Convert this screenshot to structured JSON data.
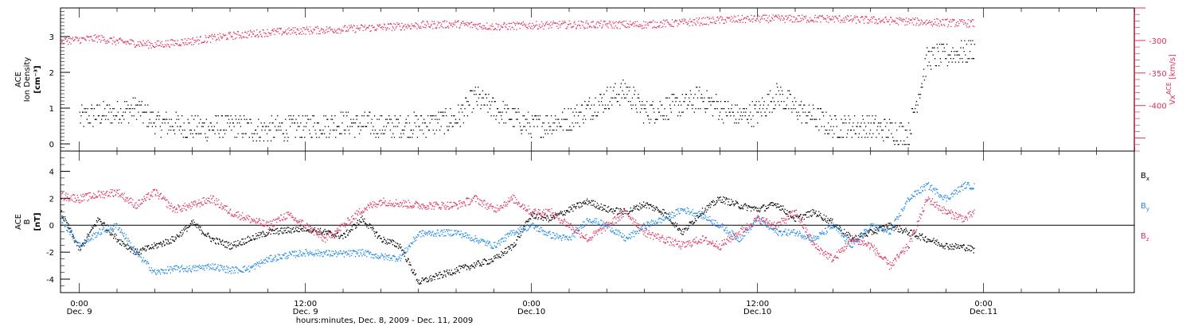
{
  "colors": {
    "black": "#000000",
    "red": "#e0305c",
    "blue": "#1e88e5"
  },
  "chart_data": [
    {
      "type": "scatter",
      "panel": "top",
      "ylabel_lines": [
        "ACE",
        "Ion Density"
      ],
      "yunit": "[cm⁻³]",
      "ylim": [
        -0.2,
        3.8
      ],
      "yticks": [
        "0",
        "1",
        "2",
        "3"
      ],
      "y2label": "Vₓᴬᶜᴱ [km/s]",
      "y2label_text": "Vx",
      "y2label_sup": "ACE",
      "y2label_unit": "[km/s]",
      "y2lim": [
        -250,
        -470
      ],
      "y2ticks": [
        "-300",
        "-350",
        "-400"
      ],
      "x_hours_range": [
        -1,
        56
      ],
      "series": [
        {
          "name": "",
          "color": "black",
          "keyframes": [
            [
              0,
              0.75
            ],
            [
              2,
              0.9
            ],
            [
              3,
              1.0
            ],
            [
              4,
              0.6
            ],
            [
              5,
              0.55
            ],
            [
              6,
              0.45
            ],
            [
              8,
              0.5
            ],
            [
              10,
              0.4
            ],
            [
              12,
              0.5
            ],
            [
              14,
              0.6
            ],
            [
              16,
              0.5
            ],
            [
              18,
              0.55
            ],
            [
              20,
              0.7
            ],
            [
              21,
              1.3
            ],
            [
              22,
              1.0
            ],
            [
              24,
              0.5
            ],
            [
              26,
              0.7
            ],
            [
              28,
              1.3
            ],
            [
              29,
              1.5
            ],
            [
              30,
              0.9
            ],
            [
              32,
              1.1
            ],
            [
              33,
              1.3
            ],
            [
              34,
              1.0
            ],
            [
              35,
              0.8
            ],
            [
              36,
              0.9
            ],
            [
              37,
              1.4
            ],
            [
              38,
              1.0
            ],
            [
              40,
              0.5
            ],
            [
              42,
              0.5
            ],
            [
              43,
              0.4
            ],
            [
              44,
              0.3
            ],
            [
              45,
              2.4
            ],
            [
              46,
              2.5
            ],
            [
              47,
              2.6
            ],
            [
              47.5,
              2.7
            ]
          ],
          "spread": 0.35
        },
        {
          "name": "",
          "color": "red",
          "axis": "y2",
          "keyframes": [
            [
              -1,
              -300
            ],
            [
              0,
              -298
            ],
            [
              1,
              -296
            ],
            [
              2,
              -301
            ],
            [
              4,
              -306
            ],
            [
              6,
              -300
            ],
            [
              8,
              -292
            ],
            [
              10,
              -287
            ],
            [
              12,
              -284
            ],
            [
              14,
              -282
            ],
            [
              16,
              -279
            ],
            [
              18,
              -276
            ],
            [
              20,
              -274
            ],
            [
              22,
              -278
            ],
            [
              24,
              -276
            ],
            [
              26,
              -275
            ],
            [
              28,
              -275
            ],
            [
              30,
              -275
            ],
            [
              32,
              -272
            ],
            [
              34,
              -268
            ],
            [
              36,
              -266
            ],
            [
              38,
              -266
            ],
            [
              40,
              -266
            ],
            [
              42,
              -268
            ],
            [
              44,
              -270
            ],
            [
              46,
              -272
            ],
            [
              47.5,
              -273
            ]
          ],
          "spread": 6
        }
      ]
    },
    {
      "type": "scatter",
      "panel": "bottom",
      "ylabel_lines": [
        "ACE",
        "B"
      ],
      "yunit": "[nT]",
      "ylim": [
        -5,
        5.5
      ],
      "yticks": [
        "-4",
        "-2",
        "0",
        "2",
        "4"
      ],
      "legend": [
        "Bx",
        "By",
        "Bz"
      ],
      "legend_placement": "right",
      "x_hours_range": [
        -1,
        56
      ],
      "series": [
        {
          "name": "Bx",
          "color": "black",
          "keyframes": [
            [
              -1,
              1.0
            ],
            [
              0,
              -1.8
            ],
            [
              1,
              0.5
            ],
            [
              2,
              -1.0
            ],
            [
              3,
              -2.0
            ],
            [
              5,
              -1.0
            ],
            [
              6,
              0.2
            ],
            [
              7,
              -1.0
            ],
            [
              8,
              -1.5
            ],
            [
              9,
              -1.0
            ],
            [
              10,
              -0.5
            ],
            [
              12,
              -0.2
            ],
            [
              14,
              -0.8
            ],
            [
              15,
              0.5
            ],
            [
              16,
              -1.0
            ],
            [
              17,
              -1.5
            ],
            [
              18,
              -4.2
            ],
            [
              20,
              -3.3
            ],
            [
              22,
              -2.5
            ],
            [
              23,
              -1.5
            ],
            [
              24,
              0.8
            ],
            [
              25,
              0.5
            ],
            [
              26,
              1.2
            ],
            [
              27,
              1.8
            ],
            [
              28,
              1.2
            ],
            [
              29,
              1.0
            ],
            [
              30,
              1.6
            ],
            [
              31,
              1.0
            ],
            [
              32,
              -0.5
            ],
            [
              33,
              1.0
            ],
            [
              34,
              2.0
            ],
            [
              35,
              1.5
            ],
            [
              36,
              1.2
            ],
            [
              37,
              1.6
            ],
            [
              38,
              0.5
            ],
            [
              39,
              1.0
            ],
            [
              40,
              0.2
            ],
            [
              41,
              -1.0
            ],
            [
              42,
              -0.5
            ],
            [
              43,
              0.0
            ],
            [
              44,
              -0.5
            ],
            [
              45,
              -1.0
            ],
            [
              46,
              -1.5
            ],
            [
              47,
              -1.6
            ],
            [
              47.5,
              -1.8
            ]
          ],
          "spread": 0.25
        },
        {
          "name": "By",
          "color": "blue",
          "keyframes": [
            [
              -1,
              0.5
            ],
            [
              0,
              -1.5
            ],
            [
              1,
              -0.5
            ],
            [
              2,
              0.0
            ],
            [
              3,
              -2.0
            ],
            [
              4,
              -3.5
            ],
            [
              5,
              -3.2
            ],
            [
              6,
              -3.2
            ],
            [
              7,
              -3.0
            ],
            [
              8,
              -3.3
            ],
            [
              9,
              -3.2
            ],
            [
              10,
              -2.5
            ],
            [
              11,
              -2.2
            ],
            [
              12,
              -2.0
            ],
            [
              14,
              -2.1
            ],
            [
              15,
              -2.0
            ],
            [
              16,
              -2.3
            ],
            [
              17,
              -2.4
            ],
            [
              18,
              -0.6
            ],
            [
              20,
              -0.5
            ],
            [
              21,
              -1.0
            ],
            [
              22,
              -1.5
            ],
            [
              23,
              -0.5
            ],
            [
              24,
              0.0
            ],
            [
              25,
              -0.7
            ],
            [
              26,
              -1.0
            ],
            [
              27,
              0.5
            ],
            [
              28,
              0.0
            ],
            [
              29,
              -1.0
            ],
            [
              30,
              0.0
            ],
            [
              31,
              0.5
            ],
            [
              32,
              1.2
            ],
            [
              33,
              0.8
            ],
            [
              34,
              0.0
            ],
            [
              35,
              -1.0
            ],
            [
              36,
              0.5
            ],
            [
              37,
              -0.5
            ],
            [
              38,
              -0.5
            ],
            [
              39,
              -1.0
            ],
            [
              40,
              0.0
            ],
            [
              41,
              -1.5
            ],
            [
              42,
              0.0
            ],
            [
              43,
              -0.5
            ],
            [
              44,
              2.0
            ],
            [
              45,
              3.0
            ],
            [
              46,
              2.0
            ],
            [
              47,
              3.0
            ],
            [
              47.5,
              2.9
            ]
          ],
          "spread": 0.25
        },
        {
          "name": "Bz",
          "color": "red",
          "keyframes": [
            [
              -1,
              2.2
            ],
            [
              0,
              2.0
            ],
            [
              1,
              2.3
            ],
            [
              2,
              2.5
            ],
            [
              3,
              1.5
            ],
            [
              4,
              2.5
            ],
            [
              5,
              1.2
            ],
            [
              6,
              1.5
            ],
            [
              7,
              2.0
            ],
            [
              8,
              1.0
            ],
            [
              9,
              0.5
            ],
            [
              10,
              0.0
            ],
            [
              11,
              0.8
            ],
            [
              12,
              0.0
            ],
            [
              13,
              -1.0
            ],
            [
              14,
              0.0
            ],
            [
              15,
              1.2
            ],
            [
              16,
              1.8
            ],
            [
              18,
              1.5
            ],
            [
              20,
              1.5
            ],
            [
              21,
              2.0
            ],
            [
              22,
              1.2
            ],
            [
              23,
              2.0
            ],
            [
              24,
              1.0
            ],
            [
              25,
              1.0
            ],
            [
              26,
              0.0
            ],
            [
              27,
              -1.0
            ],
            [
              28,
              0.0
            ],
            [
              29,
              1.0
            ],
            [
              30,
              -0.5
            ],
            [
              31,
              -1.0
            ],
            [
              32,
              -1.5
            ],
            [
              33,
              -1.0
            ],
            [
              34,
              -1.5
            ],
            [
              35,
              -0.5
            ],
            [
              36,
              0.5
            ],
            [
              37,
              0.0
            ],
            [
              38,
              1.0
            ],
            [
              39,
              -1.5
            ],
            [
              40,
              -2.5
            ],
            [
              41,
              -1.0
            ],
            [
              42,
              -1.5
            ],
            [
              43,
              -3.0
            ],
            [
              44,
              -1.5
            ],
            [
              45,
              2.0
            ],
            [
              46,
              1.0
            ],
            [
              47,
              0.5
            ],
            [
              47.5,
              1.0
            ]
          ],
          "spread": 0.3
        }
      ]
    }
  ],
  "xaxis": {
    "ticks": [
      {
        "time": "0:00",
        "date": "Dec. 9"
      },
      {
        "time": "12:00",
        "date": "Dec. 9"
      },
      {
        "time": "0:00",
        "date": "Dec.10"
      },
      {
        "time": "12:00",
        "date": "Dec.10"
      },
      {
        "time": "0:00",
        "date": "Dec.11"
      }
    ],
    "tick_hours": [
      0,
      12,
      24,
      36,
      48
    ],
    "label": "hours:minutes, Dec. 8, 2009 - Dec. 11, 2009"
  }
}
